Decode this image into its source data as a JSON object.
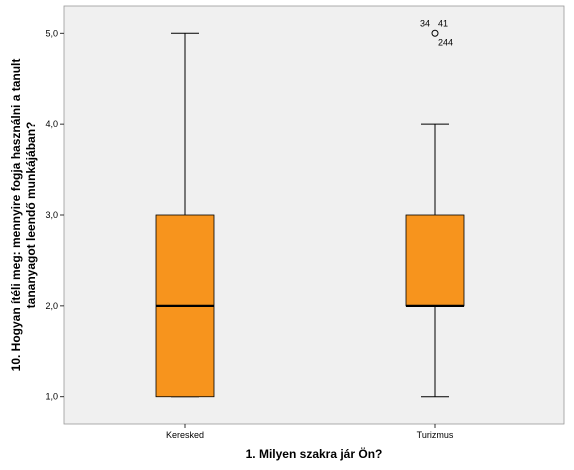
{
  "chart_data": {
    "type": "boxplot",
    "title": "",
    "xlabel": "1. Milyen szakra jár Ön?",
    "ylabel_lines": [
      "10. Hogyan ítéli meg: mennyire fogja használni a tanult",
      "tananyagot leendő munkájában?"
    ],
    "ylim": [
      0.7,
      5.3
    ],
    "yticks": [
      1.0,
      2.0,
      3.0,
      4.0,
      5.0
    ],
    "ytick_labels": [
      "1,0",
      "2,0",
      "3,0",
      "4,0",
      "5,0"
    ],
    "grid": false,
    "box_color": "#f7941d",
    "plot_background": "#f0f0f0",
    "categories": [
      "Keresked",
      "Turizmus"
    ],
    "boxes": [
      {
        "category": "Keresked",
        "whisker_low": 1.0,
        "q1": 1.0,
        "median": 2.0,
        "q3": 3.0,
        "whisker_high": 5.0,
        "outliers": []
      },
      {
        "category": "Turizmus",
        "whisker_low": 1.0,
        "q1": 2.0,
        "median": 2.0,
        "q3": 3.0,
        "whisker_high": 4.0,
        "outliers": [
          {
            "value": 5.0,
            "labels": [
              "34",
              "41",
              "244"
            ]
          }
        ]
      }
    ]
  }
}
